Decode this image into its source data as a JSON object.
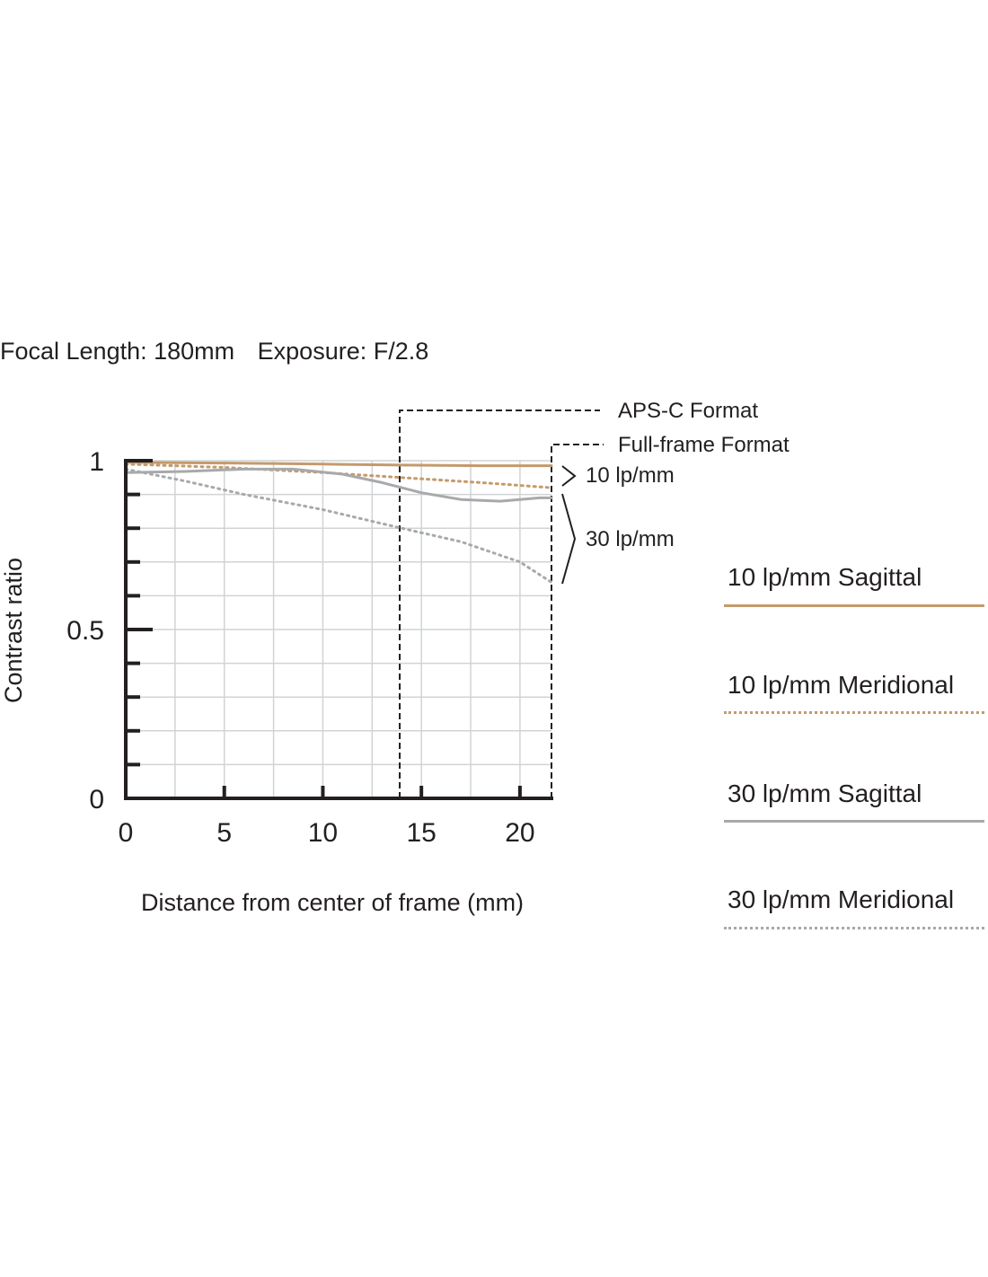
{
  "header": {
    "focal_length": "Focal Length: 180mm",
    "exposure": "Exposure: F/2.8"
  },
  "format_labels": {
    "apsc": "APS-C Format",
    "fullframe": "Full-frame Format"
  },
  "group_labels": {
    "lp10": "10 lp/mm",
    "lp30": "30 lp/mm"
  },
  "legend": [
    {
      "label": "10 lp/mm Sagittal",
      "color": "#c49a6c",
      "style": "solid"
    },
    {
      "label": "10 lp/mm Meridional",
      "color": "#c49a6c",
      "style": "dotted"
    },
    {
      "label": "30 lp/mm Sagittal",
      "color": "#a7a9ac",
      "style": "solid"
    },
    {
      "label": "30 lp/mm Meridional",
      "color": "#a7a9ac",
      "style": "dotted"
    }
  ],
  "chart_data": {
    "type": "line",
    "title": "",
    "xlabel": "Distance from center of frame (mm)",
    "ylabel": "Contrast ratio",
    "xlim": [
      0,
      21.6
    ],
    "ylim": [
      0,
      1
    ],
    "x_ticks": [
      "0",
      "5",
      "10",
      "15",
      "20"
    ],
    "y_ticks": [
      "0",
      "0.5",
      "1"
    ],
    "grid": true,
    "apsc_boundary_x": 13.9,
    "fullframe_boundary_x": 21.6,
    "series": [
      {
        "name": "10 lp/mm Sagittal",
        "color": "#c49a6c",
        "style": "solid",
        "x": [
          0,
          5,
          10,
          14,
          18,
          21.6
        ],
        "y": [
          0.995,
          0.993,
          0.99,
          0.987,
          0.985,
          0.985
        ]
      },
      {
        "name": "10 lp/mm Meridional",
        "color": "#c49a6c",
        "style": "dotted",
        "x": [
          0,
          5,
          10,
          14,
          18,
          21.6
        ],
        "y": [
          0.99,
          0.98,
          0.965,
          0.95,
          0.935,
          0.92
        ]
      },
      {
        "name": "30 lp/mm Sagittal",
        "color": "#a7a9ac",
        "style": "solid",
        "x": [
          0,
          3,
          6,
          8.5,
          11,
          13,
          15,
          17,
          19,
          21,
          21.6
        ],
        "y": [
          0.965,
          0.968,
          0.975,
          0.975,
          0.96,
          0.935,
          0.905,
          0.885,
          0.88,
          0.89,
          0.89
        ]
      },
      {
        "name": "30 lp/mm Meridional",
        "color": "#a7a9ac",
        "style": "dotted",
        "x": [
          0,
          3,
          6,
          10,
          14,
          17,
          20,
          21.6
        ],
        "y": [
          0.975,
          0.94,
          0.9,
          0.855,
          0.8,
          0.76,
          0.7,
          0.64
        ]
      }
    ]
  }
}
